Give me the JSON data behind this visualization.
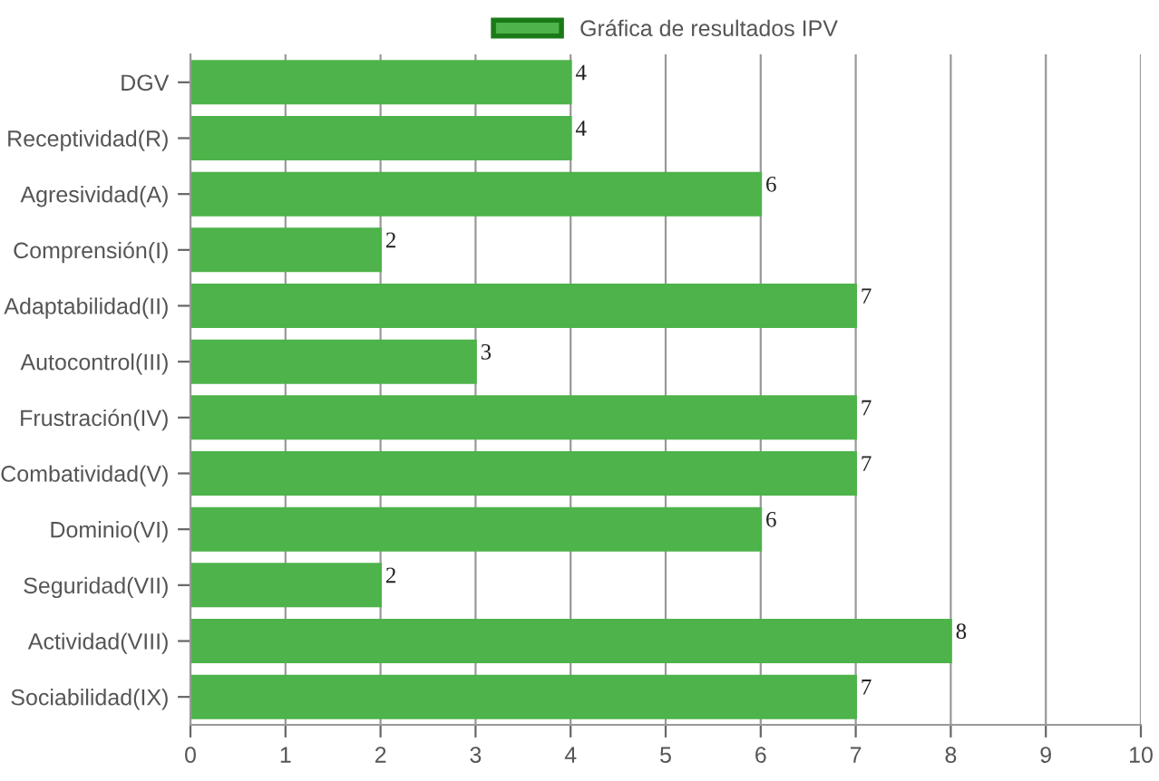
{
  "chart_data": {
    "type": "bar",
    "orientation": "horizontal",
    "categories": [
      "DGV",
      "Receptividad(R)",
      "Agresividad(A)",
      "Comprensión(I)",
      "Adaptabilidad(II)",
      "Autocontrol(III)",
      "Frustración(IV)",
      "Combatividad(V)",
      "Dominio(VI)",
      "Seguridad(VII)",
      "Actividad(VIII)",
      "Sociabilidad(IX)"
    ],
    "series": [
      {
        "name": "Gráfica de resultados IPV",
        "color": "#4db34a",
        "values": [
          4,
          4,
          6,
          2,
          7,
          3,
          7,
          7,
          6,
          2,
          8,
          7
        ]
      }
    ],
    "xlim": [
      0,
      10
    ],
    "xticks": [
      0,
      1,
      2,
      3,
      4,
      5,
      6,
      7,
      8,
      9,
      10
    ],
    "grid": "x",
    "legend": "top",
    "data_labels": true
  }
}
